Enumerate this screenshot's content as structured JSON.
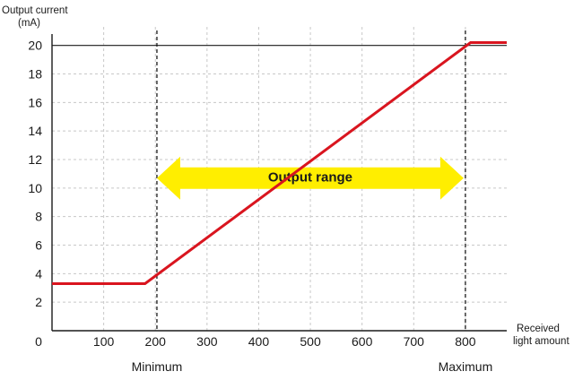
{
  "chart_data": {
    "type": "line",
    "title": "",
    "ylabel_line1": "Output current",
    "ylabel_line2": "(mA)",
    "xlabel_line1": "Received",
    "xlabel_line2": "light amount",
    "origin_label": "0",
    "x_ticks": [
      100,
      200,
      300,
      400,
      500,
      600,
      700,
      800
    ],
    "y_ticks": [
      2,
      4,
      6,
      8,
      10,
      12,
      14,
      16,
      18,
      20
    ],
    "xlim": [
      0,
      880
    ],
    "ylim": [
      0,
      21.3
    ],
    "grid": true,
    "series": [
      {
        "color": "#d9151f",
        "x": [
          0,
          180,
          810,
          880
        ],
        "y": [
          3.3,
          3.3,
          20.2,
          20.2
        ]
      }
    ],
    "reference_lines": {
      "horizontal_y": 20,
      "vertical_x": [
        203,
        800
      ]
    },
    "range_arrow": {
      "label": "Output range",
      "x_start": 203,
      "x_end": 800,
      "y": 10.7,
      "color": "#ffee00"
    },
    "markers": [
      {
        "label": "Minimum",
        "x": 203
      },
      {
        "label": "Maximum",
        "x": 800
      }
    ]
  }
}
